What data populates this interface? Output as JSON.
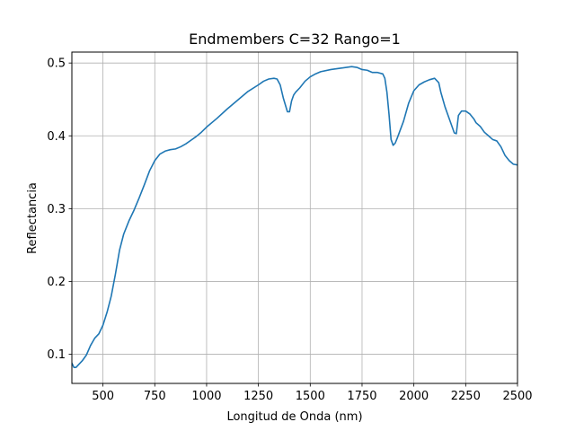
{
  "chart_data": {
    "type": "line",
    "title": "Endmembers C=32 Rango=1",
    "xlabel": "Longitud de Onda (nm)",
    "ylabel": "Reflectancia",
    "xlim": [
      350,
      2500
    ],
    "ylim": [
      0.06,
      0.515
    ],
    "xticks": [
      500,
      750,
      1000,
      1250,
      1500,
      1750,
      2000,
      2250,
      2500
    ],
    "yticks": [
      0.1,
      0.2,
      0.3,
      0.4,
      0.5
    ],
    "grid": true,
    "legend": "none",
    "series": [
      {
        "color": "#1f77b4",
        "x": [
          350,
          360,
          370,
          380,
          400,
          420,
          440,
          460,
          480,
          500,
          520,
          540,
          560,
          580,
          600,
          625,
          650,
          675,
          700,
          725,
          750,
          775,
          800,
          825,
          850,
          875,
          900,
          925,
          950,
          975,
          1000,
          1050,
          1100,
          1150,
          1200,
          1250,
          1275,
          1300,
          1325,
          1340,
          1355,
          1370,
          1390,
          1400,
          1410,
          1420,
          1430,
          1450,
          1475,
          1500,
          1525,
          1550,
          1600,
          1650,
          1700,
          1725,
          1750,
          1775,
          1800,
          1825,
          1850,
          1860,
          1870,
          1880,
          1890,
          1900,
          1910,
          1920,
          1950,
          1975,
          2000,
          2025,
          2050,
          2075,
          2100,
          2120,
          2130,
          2150,
          2175,
          2195,
          2205,
          2215,
          2230,
          2250,
          2270,
          2290,
          2300,
          2320,
          2340,
          2360,
          2380,
          2400,
          2420,
          2440,
          2460,
          2480,
          2500
        ],
        "values": [
          0.088,
          0.082,
          0.082,
          0.085,
          0.091,
          0.099,
          0.112,
          0.122,
          0.128,
          0.14,
          0.158,
          0.18,
          0.21,
          0.243,
          0.265,
          0.283,
          0.298,
          0.315,
          0.333,
          0.352,
          0.366,
          0.375,
          0.379,
          0.381,
          0.382,
          0.385,
          0.389,
          0.394,
          0.399,
          0.405,
          0.412,
          0.424,
          0.437,
          0.449,
          0.461,
          0.47,
          0.475,
          0.478,
          0.479,
          0.478,
          0.47,
          0.452,
          0.433,
          0.433,
          0.448,
          0.456,
          0.46,
          0.466,
          0.475,
          0.481,
          0.485,
          0.488,
          0.491,
          0.493,
          0.495,
          0.494,
          0.491,
          0.49,
          0.487,
          0.487,
          0.485,
          0.479,
          0.46,
          0.43,
          0.395,
          0.387,
          0.39,
          0.397,
          0.42,
          0.445,
          0.462,
          0.47,
          0.474,
          0.477,
          0.479,
          0.473,
          0.46,
          0.44,
          0.42,
          0.404,
          0.403,
          0.428,
          0.434,
          0.434,
          0.43,
          0.423,
          0.418,
          0.413,
          0.405,
          0.4,
          0.395,
          0.393,
          0.385,
          0.373,
          0.366,
          0.361,
          0.36
        ]
      }
    ]
  }
}
